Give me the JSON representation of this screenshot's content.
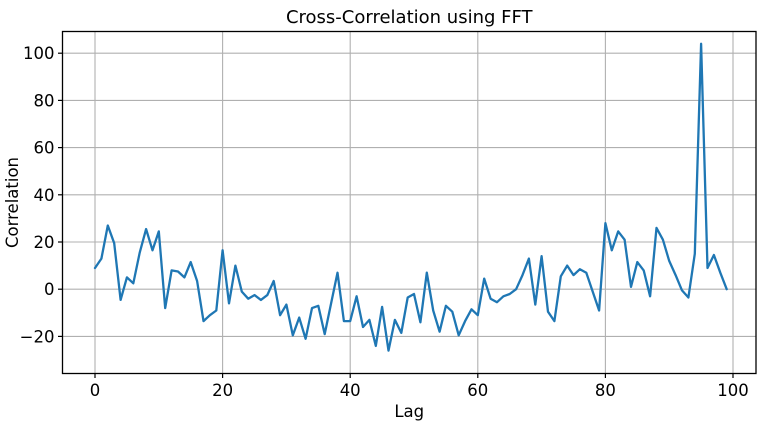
{
  "figure": {
    "background": "#ffffff",
    "plot_background": "#ffffff",
    "spine_color": "#000000",
    "grid_color": "#b0b0b0",
    "text_color": "#000000"
  },
  "chart_data": {
    "type": "line",
    "title": "Cross-Correlation using FFT",
    "xlabel": "Lag",
    "ylabel": "Correlation",
    "grid": true,
    "legend": "none",
    "xlim": [
      -5.1,
      103.6
    ],
    "ylim": [
      -35.7,
      109.2
    ],
    "xticks": [
      0,
      20,
      40,
      60,
      80,
      100
    ],
    "xtick_labels": [
      "0",
      "20",
      "40",
      "60",
      "80",
      "100"
    ],
    "yticks": [
      -20,
      0,
      20,
      40,
      60,
      80,
      100
    ],
    "ytick_labels": [
      "−20",
      "0",
      "20",
      "40",
      "60",
      "80",
      "100"
    ],
    "x": [
      0,
      1,
      2,
      3,
      4,
      5,
      6,
      7,
      8,
      9,
      10,
      11,
      12,
      13,
      14,
      15,
      16,
      17,
      18,
      19,
      20,
      21,
      22,
      23,
      24,
      25,
      26,
      27,
      28,
      29,
      30,
      31,
      32,
      33,
      34,
      35,
      36,
      37,
      38,
      39,
      40,
      41,
      42,
      43,
      44,
      45,
      46,
      47,
      48,
      49,
      50,
      51,
      52,
      53,
      54,
      55,
      56,
      57,
      58,
      59,
      60,
      61,
      62,
      63,
      64,
      65,
      66,
      67,
      68,
      69,
      70,
      71,
      72,
      73,
      74,
      75,
      76,
      77,
      78,
      79,
      80,
      81,
      82,
      83,
      84,
      85,
      86,
      87,
      88,
      89,
      90,
      91,
      92,
      93,
      94,
      95,
      96,
      97,
      98,
      99
    ],
    "series": [
      {
        "name": "cross-correlation",
        "color": "#1f77b4",
        "values": [
          9,
          13,
          27,
          19.5,
          -4.5,
          5,
          2.5,
          15.5,
          25.5,
          16.5,
          24.5,
          -8,
          8,
          7.5,
          5,
          11.5,
          3.5,
          -13.5,
          -11,
          -9,
          16.5,
          -6,
          10,
          -1,
          -4,
          -2.5,
          -4.5,
          -2.5,
          3.5,
          -11,
          -6.5,
          -19.5,
          -12,
          -21,
          -8,
          -7,
          -19,
          -6,
          7,
          -13.5,
          -13.5,
          -3,
          -16,
          -13,
          -24,
          -7.5,
          -26,
          -13,
          -18.5,
          -3.5,
          -2,
          -14,
          7,
          -9,
          -18,
          -7,
          -9.5,
          -19.5,
          -13.5,
          -8.5,
          -11,
          4.5,
          -4,
          -5.5,
          -3,
          -2,
          0,
          6,
          13,
          -6.5,
          14,
          -9.5,
          -13.5,
          5.5,
          10,
          6,
          8.5,
          7,
          -1,
          -9,
          28,
          16.5,
          24.5,
          21,
          1,
          11.5,
          8,
          -3,
          26,
          21,
          12,
          6,
          -0.5,
          -3.5,
          15,
          104,
          9,
          14.5,
          7,
          0
        ]
      }
    ]
  }
}
